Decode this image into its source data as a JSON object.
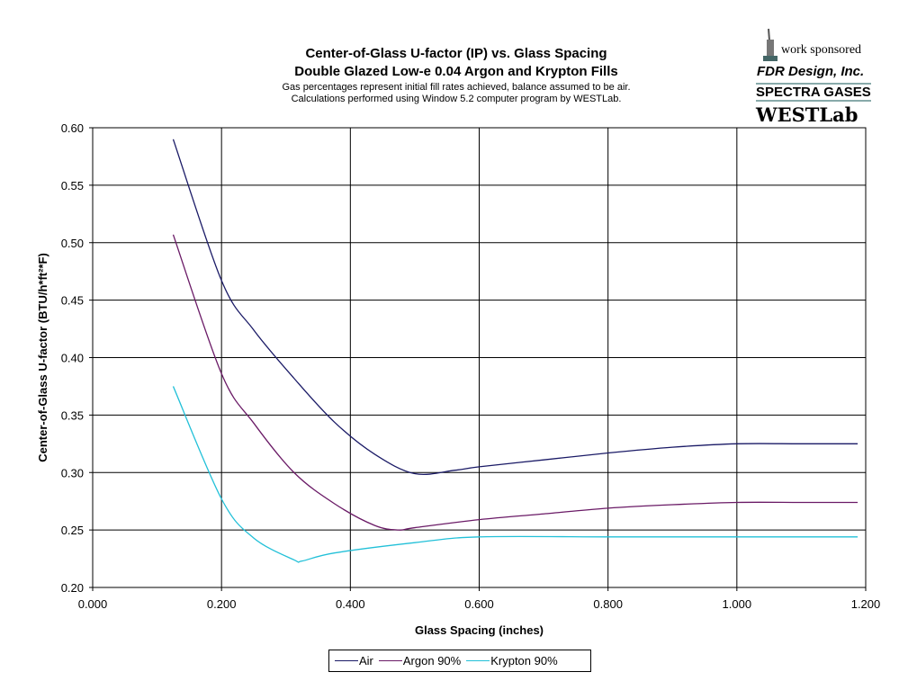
{
  "chart_data": {
    "type": "line",
    "title": "Center-of-Glass U-factor (IP) vs. Glass Spacing",
    "title2": "Double Glazed Low-e 0.04 Argon and Krypton Fills",
    "subtitle1": "Gas percentages represent initial fill rates achieved, balance assumed to be air.",
    "subtitle2": "Calculations performed using Window 5.2 computer program by WESTLab.",
    "xlabel": "Glass Spacing (inches)",
    "ylabel": "Center-of-Glass U-factor (BTU/h*ft²*F)",
    "xlim": [
      0,
      1.2
    ],
    "ylim": [
      0.2,
      0.6
    ],
    "xticks": [
      "0.000",
      "0.200",
      "0.400",
      "0.600",
      "0.800",
      "1.000",
      "1.200"
    ],
    "yticks": [
      "0.20",
      "0.25",
      "0.30",
      "0.35",
      "0.40",
      "0.45",
      "0.50",
      "0.55",
      "0.60"
    ],
    "grid": true,
    "legend_position": "bottom",
    "series": [
      {
        "name": "Air",
        "color": "#1a1a66",
        "x": [
          0.125,
          0.2,
          0.25,
          0.3125,
          0.375,
          0.4375,
          0.5,
          0.5625,
          0.6,
          0.7,
          0.8,
          0.9,
          1.0,
          1.1,
          1.1875
        ],
        "y": [
          0.59,
          0.467,
          0.424,
          0.382,
          0.344,
          0.316,
          0.299,
          0.302,
          0.305,
          0.311,
          0.317,
          0.322,
          0.325,
          0.325,
          0.325
        ]
      },
      {
        "name": "Argon 90%",
        "color": "#6a1a66",
        "x": [
          0.125,
          0.2,
          0.25,
          0.3125,
          0.375,
          0.4375,
          0.475,
          0.5,
          0.6,
          0.7,
          0.8,
          0.9,
          1.0,
          1.1,
          1.1875
        ],
        "y": [
          0.507,
          0.386,
          0.343,
          0.3,
          0.273,
          0.254,
          0.25,
          0.252,
          0.259,
          0.264,
          0.269,
          0.272,
          0.274,
          0.274,
          0.274
        ]
      },
      {
        "name": "Krypton 90%",
        "color": "#22c0d8",
        "x": [
          0.125,
          0.2,
          0.25,
          0.3125,
          0.325,
          0.375,
          0.5,
          0.6,
          0.8,
          1.0,
          1.1875
        ],
        "y": [
          0.375,
          0.277,
          0.243,
          0.224,
          0.223,
          0.23,
          0.239,
          0.244,
          0.244,
          0.244,
          0.244
        ]
      }
    ]
  },
  "logo": {
    "work": "work sponsored",
    "fdr": "FDR Design, Inc.",
    "spectra": "SPECTRA GASES",
    "westlab": "WESTLab"
  }
}
